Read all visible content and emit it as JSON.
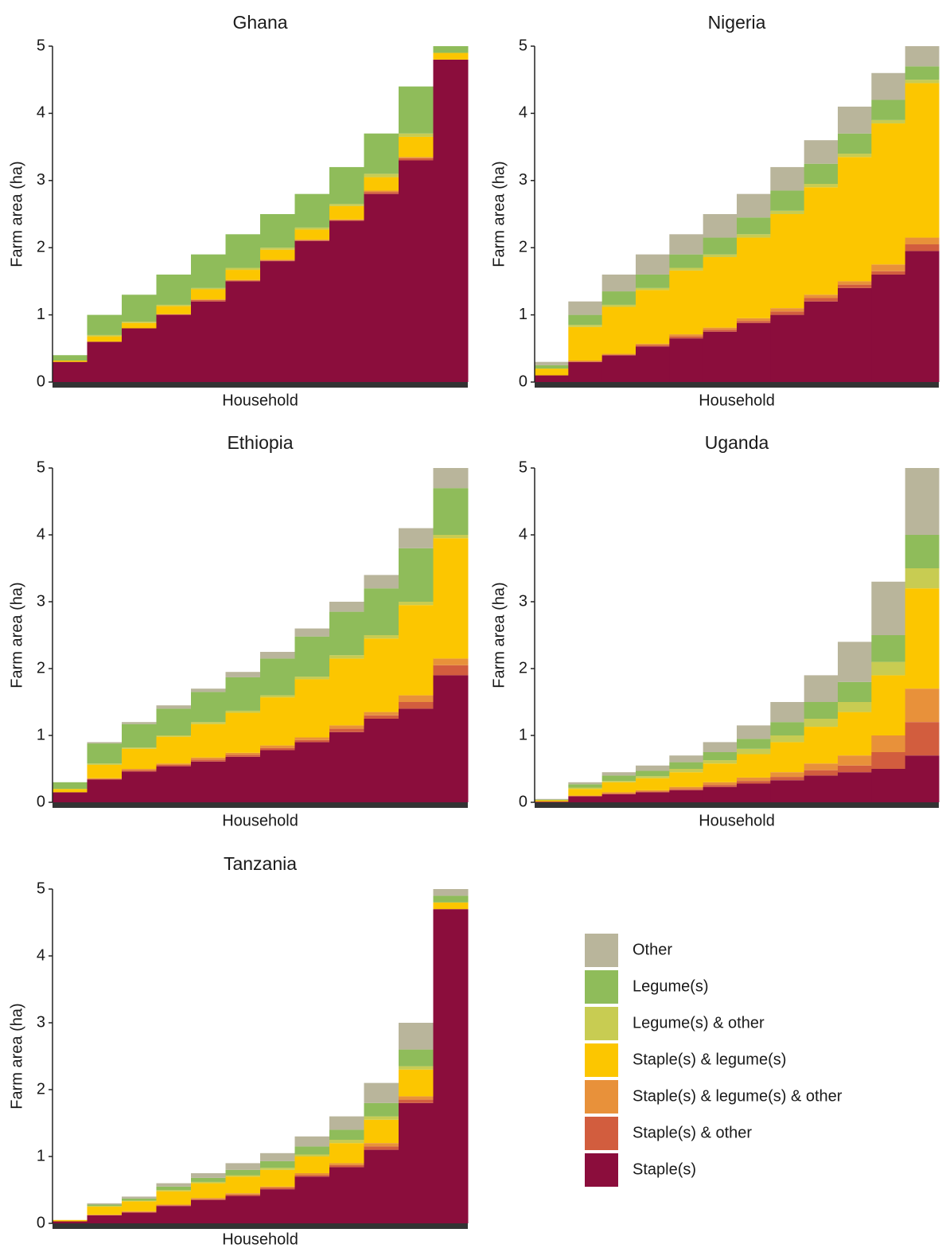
{
  "legend": [
    {
      "name": "Other",
      "color": "#b9b59b"
    },
    {
      "name": "Legume(s)",
      "color": "#8fbc5a"
    },
    {
      "name": "Legume(s) & other",
      "color": "#c8cc52"
    },
    {
      "name": "Staple(s) & legume(s)",
      "color": "#fcc600"
    },
    {
      "name": "Staple(s) & legume(s) & other",
      "color": "#e8913a"
    },
    {
      "name": "Staple(s) & other",
      "color": "#d25d3e"
    },
    {
      "name": "Staple(s)",
      "color": "#8b0d3c"
    }
  ],
  "chart_data": [
    {
      "type": "bar",
      "stacked": true,
      "title": "Ghana",
      "xlabel": "Household",
      "ylabel": "Farm area (ha)",
      "ylim": [
        0,
        5
      ],
      "yticks": [
        0,
        1,
        2,
        3,
        4,
        5
      ],
      "categories": [
        null,
        null,
        null,
        null,
        null,
        null,
        null,
        null,
        null,
        null,
        null,
        null
      ],
      "series": [
        {
          "values": [
            0,
            0,
            0,
            0,
            0,
            0,
            0,
            0,
            0,
            0,
            0,
            0
          ]
        },
        {
          "values": [
            0.08,
            0.3,
            0.4,
            0.45,
            0.5,
            0.5,
            0.5,
            0.5,
            0.55,
            0.6,
            0.7,
            0.1
          ]
        },
        {
          "values": [
            0,
            0.02,
            0.02,
            0.02,
            0.02,
            0.03,
            0.03,
            0.03,
            0.03,
            0.05,
            0.05,
            0
          ]
        },
        {
          "values": [
            0.02,
            0.08,
            0.08,
            0.12,
            0.15,
            0.15,
            0.15,
            0.15,
            0.2,
            0.2,
            0.3,
            0.1
          ]
        },
        {
          "values": [
            0,
            0,
            0,
            0,
            0.01,
            0.01,
            0.01,
            0.01,
            0.01,
            0.02,
            0.02,
            0
          ]
        },
        {
          "values": [
            0,
            0,
            0,
            0.01,
            0.02,
            0.01,
            0.01,
            0.01,
            0.01,
            0.03,
            0.03,
            0
          ]
        },
        {
          "values": [
            0.3,
            0.6,
            0.8,
            1.0,
            1.2,
            1.5,
            1.8,
            2.1,
            2.4,
            2.8,
            3.3,
            4.8
          ]
        }
      ]
    },
    {
      "type": "bar",
      "stacked": true,
      "title": "Nigeria",
      "xlabel": "Household",
      "ylabel": "Farm area (ha)",
      "ylim": [
        0,
        5
      ],
      "yticks": [
        0,
        1,
        2,
        3,
        4,
        5
      ],
      "categories": [
        null,
        null,
        null,
        null,
        null,
        null,
        null,
        null,
        null,
        null,
        null,
        null
      ],
      "series": [
        {
          "values": [
            0.05,
            0.2,
            0.25,
            0.3,
            0.3,
            0.35,
            0.35,
            0.35,
            0.35,
            0.4,
            0.4,
            0.3
          ]
        },
        {
          "values": [
            0.05,
            0.15,
            0.2,
            0.2,
            0.2,
            0.25,
            0.25,
            0.3,
            0.3,
            0.3,
            0.3,
            0.2
          ]
        },
        {
          "values": [
            0,
            0.03,
            0.03,
            0.03,
            0.04,
            0.04,
            0.05,
            0.05,
            0.05,
            0.05,
            0.05,
            0.05
          ]
        },
        {
          "values": [
            0.1,
            0.5,
            0.7,
            0.8,
            0.95,
            1.05,
            1.2,
            1.4,
            1.6,
            1.85,
            2.1,
            2.3
          ]
        },
        {
          "values": [
            0,
            0.02,
            0.02,
            0.02,
            0.03,
            0.03,
            0.04,
            0.05,
            0.05,
            0.05,
            0.1,
            0.1
          ]
        },
        {
          "values": [
            0,
            0,
            0,
            0.02,
            0.03,
            0.03,
            0.03,
            0.05,
            0.05,
            0.05,
            0.05,
            0.1
          ]
        },
        {
          "values": [
            0.1,
            0.3,
            0.4,
            0.53,
            0.65,
            0.75,
            0.88,
            1.0,
            1.2,
            1.4,
            1.6,
            1.95
          ]
        }
      ]
    },
    {
      "type": "bar",
      "stacked": true,
      "title": "Ethiopia",
      "xlabel": "Household",
      "ylabel": "Farm area (ha)",
      "ylim": [
        0,
        5
      ],
      "yticks": [
        0,
        1,
        2,
        3,
        4,
        5
      ],
      "categories": [
        null,
        null,
        null,
        null,
        null,
        null,
        null,
        null,
        null,
        null,
        null,
        null
      ],
      "series": [
        {
          "values": [
            0,
            0.02,
            0.03,
            0.05,
            0.05,
            0.08,
            0.1,
            0.12,
            0.15,
            0.2,
            0.3,
            0.3
          ]
        },
        {
          "values": [
            0.1,
            0.3,
            0.35,
            0.4,
            0.45,
            0.5,
            0.55,
            0.6,
            0.65,
            0.7,
            0.8,
            0.7
          ]
        },
        {
          "values": [
            0,
            0.02,
            0.02,
            0.02,
            0.03,
            0.03,
            0.03,
            0.04,
            0.05,
            0.05,
            0.05,
            0.05
          ]
        },
        {
          "values": [
            0.05,
            0.2,
            0.3,
            0.4,
            0.5,
            0.6,
            0.72,
            0.87,
            1.0,
            1.1,
            1.35,
            1.8
          ]
        },
        {
          "values": [
            0,
            0.01,
            0.02,
            0.02,
            0.03,
            0.03,
            0.04,
            0.04,
            0.05,
            0.05,
            0.1,
            0.1
          ]
        },
        {
          "values": [
            0,
            0.01,
            0.02,
            0.02,
            0.03,
            0.03,
            0.03,
            0.03,
            0.05,
            0.05,
            0.1,
            0.15
          ]
        },
        {
          "values": [
            0.15,
            0.34,
            0.46,
            0.54,
            0.61,
            0.68,
            0.78,
            0.9,
            1.05,
            1.25,
            1.4,
            1.9
          ]
        }
      ]
    },
    {
      "type": "bar",
      "stacked": true,
      "title": "Uganda",
      "xlabel": "Household",
      "ylabel": "Farm area (ha)",
      "ylim": [
        0,
        5
      ],
      "yticks": [
        0,
        1,
        2,
        3,
        4,
        5
      ],
      "categories": [
        null,
        null,
        null,
        null,
        null,
        null,
        null,
        null,
        null,
        null,
        null,
        null
      ],
      "series": [
        {
          "values": [
            0.01,
            0.03,
            0.05,
            0.08,
            0.1,
            0.15,
            0.2,
            0.3,
            0.4,
            0.6,
            0.8,
            1.0
          ]
        },
        {
          "values": [
            0.01,
            0.05,
            0.08,
            0.08,
            0.1,
            0.12,
            0.15,
            0.2,
            0.25,
            0.3,
            0.4,
            0.5
          ]
        },
        {
          "values": [
            0,
            0.02,
            0.02,
            0.03,
            0.05,
            0.05,
            0.08,
            0.1,
            0.12,
            0.15,
            0.2,
            0.3
          ]
        },
        {
          "values": [
            0.02,
            0.1,
            0.15,
            0.18,
            0.22,
            0.28,
            0.35,
            0.45,
            0.55,
            0.65,
            0.9,
            1.5
          ]
        },
        {
          "values": [
            0,
            0.01,
            0.02,
            0.02,
            0.03,
            0.04,
            0.05,
            0.07,
            0.1,
            0.15,
            0.25,
            0.5
          ]
        },
        {
          "values": [
            0,
            0,
            0.01,
            0.01,
            0.02,
            0.03,
            0.04,
            0.05,
            0.08,
            0.1,
            0.25,
            0.5
          ]
        },
        {
          "values": [
            0.01,
            0.09,
            0.12,
            0.15,
            0.18,
            0.23,
            0.28,
            0.33,
            0.4,
            0.45,
            0.5,
            0.7
          ]
        }
      ]
    },
    {
      "type": "bar",
      "stacked": true,
      "title": "Tanzania",
      "xlabel": "Household",
      "ylabel": "Farm area (ha)",
      "ylim": [
        0,
        5
      ],
      "yticks": [
        0,
        1,
        2,
        3,
        4,
        5
      ],
      "categories": [
        null,
        null,
        null,
        null,
        null,
        null,
        null,
        null,
        null,
        null,
        null,
        null
      ],
      "series": [
        {
          "values": [
            0,
            0.02,
            0.03,
            0.05,
            0.07,
            0.1,
            0.12,
            0.15,
            0.2,
            0.3,
            0.4,
            0.1
          ]
        },
        {
          "values": [
            0,
            0.02,
            0.03,
            0.05,
            0.06,
            0.08,
            0.1,
            0.12,
            0.15,
            0.2,
            0.25,
            0.1
          ]
        },
        {
          "values": [
            0,
            0.01,
            0.01,
            0.02,
            0.02,
            0.02,
            0.03,
            0.03,
            0.05,
            0.05,
            0.05,
            0
          ]
        },
        {
          "values": [
            0.02,
            0.12,
            0.15,
            0.2,
            0.22,
            0.25,
            0.25,
            0.25,
            0.3,
            0.35,
            0.4,
            0.1
          ]
        },
        {
          "values": [
            0,
            0.01,
            0.01,
            0.01,
            0.02,
            0.02,
            0.02,
            0.03,
            0.03,
            0.05,
            0.05,
            0
          ]
        },
        {
          "values": [
            0,
            0,
            0.01,
            0.01,
            0.01,
            0.02,
            0.02,
            0.02,
            0.03,
            0.05,
            0.05,
            0
          ]
        },
        {
          "values": [
            0.03,
            0.12,
            0.16,
            0.26,
            0.35,
            0.41,
            0.51,
            0.7,
            0.84,
            1.1,
            1.8,
            4.7
          ]
        }
      ]
    }
  ]
}
